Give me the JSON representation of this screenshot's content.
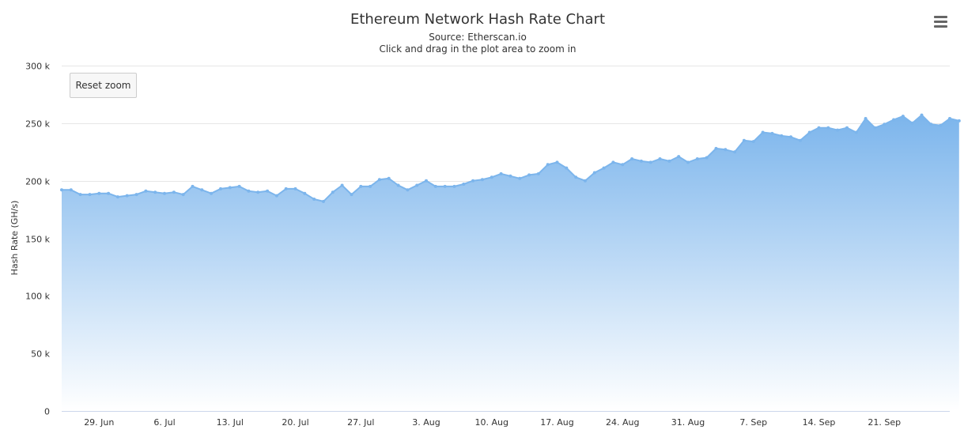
{
  "menu_icon": "hamburger-menu-icon",
  "reset_zoom_label": "Reset zoom",
  "chart_data": {
    "type": "area",
    "title": "Ethereum Network Hash Rate Chart",
    "subtitle_source": "Source: Etherscan.io",
    "subtitle_hint": "Click and drag in the plot area to zoom in",
    "ylabel": "Hash Rate (GH/s)",
    "xlabel": "",
    "ylim": [
      0,
      300000
    ],
    "y_ticks": [
      0,
      50000,
      100000,
      150000,
      200000,
      250000,
      300000
    ],
    "y_tick_labels": [
      "0",
      "50 k",
      "100 k",
      "150 k",
      "200 k",
      "250 k",
      "300 k"
    ],
    "x_ticks": [
      "2018-06-29",
      "2018-07-06",
      "2018-07-13",
      "2018-07-20",
      "2018-07-27",
      "2018-08-03",
      "2018-08-10",
      "2018-08-17",
      "2018-08-24",
      "2018-08-31",
      "2018-09-07",
      "2018-09-14",
      "2018-09-21"
    ],
    "x_tick_labels": [
      "29. Jun",
      "6. Jul",
      "13. Jul",
      "20. Jul",
      "27. Jul",
      "3. Aug",
      "10. Aug",
      "17. Aug",
      "24. Aug",
      "31. Aug",
      "7. Sep",
      "14. Sep",
      "21. Sep"
    ],
    "xlim": [
      "2018-06-25",
      "2018-09-28"
    ],
    "grid": true,
    "legend": "none",
    "colors": {
      "line": "#7cb5ec",
      "fill_top": "#7cb5ec",
      "fill_bottom": "#ffffff",
      "grid": "#e6e6e6",
      "text": "#333333"
    },
    "series": [
      {
        "x_start": "2018-06-25",
        "x_step_days": 1,
        "values": [
          192000,
          192000,
          188000,
          188000,
          189000,
          189000,
          186000,
          187000,
          188000,
          191000,
          190000,
          189000,
          190000,
          188000,
          195000,
          192000,
          189000,
          193000,
          194000,
          195000,
          191000,
          190000,
          191000,
          187000,
          193000,
          193000,
          189000,
          184000,
          182000,
          190000,
          196000,
          188000,
          195000,
          195000,
          201000,
          202000,
          196000,
          192000,
          196000,
          200000,
          195000,
          195000,
          195000,
          197000,
          200000,
          201000,
          203000,
          206000,
          204000,
          202000,
          205000,
          206000,
          214000,
          216000,
          211000,
          203000,
          200000,
          207000,
          211000,
          216000,
          214000,
          219000,
          217000,
          216000,
          219000,
          217000,
          221000,
          216000,
          219000,
          220000,
          228000,
          227000,
          225000,
          235000,
          234000,
          242000,
          241000,
          239000,
          238000,
          235000,
          242000,
          246000,
          246000,
          244000,
          246000,
          242000,
          254000,
          246000,
          249000,
          253000,
          256000,
          250000,
          257000,
          249000,
          248000,
          254000,
          252000
        ]
      }
    ]
  }
}
